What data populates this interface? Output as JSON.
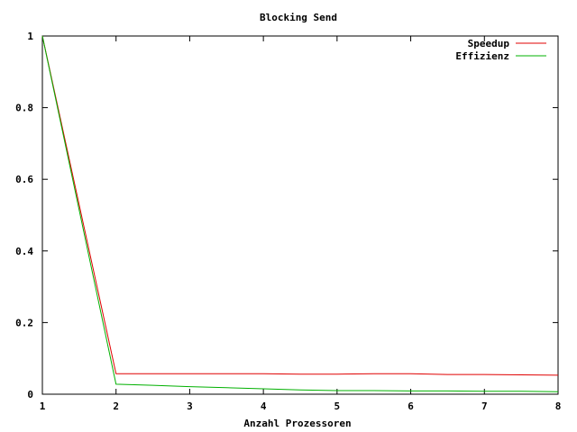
{
  "chart_data": {
    "type": "line",
    "title": "Blocking Send",
    "xlabel": "Anzahl Prozessoren",
    "ylabel": "",
    "xlim": [
      1,
      8
    ],
    "ylim": [
      0,
      1
    ],
    "x_ticks": [
      1,
      2,
      3,
      4,
      5,
      6,
      7,
      8
    ],
    "x_tick_labels": [
      "1",
      "2",
      "3",
      "4",
      "5",
      "6",
      "7",
      "8"
    ],
    "y_ticks": [
      0,
      0.2,
      0.4,
      0.6,
      0.8,
      1
    ],
    "y_tick_labels": [
      "0",
      "0.2",
      "0.4",
      "0.6",
      "0.8",
      "1"
    ],
    "grid": false,
    "legend_position": "top-right",
    "series": [
      {
        "name": "Speedup",
        "color": "#e00000",
        "x": [
          1,
          2,
          2.5,
          3,
          3.5,
          4,
          4.5,
          5,
          5.5,
          6,
          6.5,
          7,
          7.5,
          8
        ],
        "y": [
          1.0,
          0.057,
          0.057,
          0.057,
          0.057,
          0.057,
          0.056,
          0.056,
          0.057,
          0.057,
          0.055,
          0.055,
          0.054,
          0.053
        ]
      },
      {
        "name": "Effizienz",
        "color": "#00b000",
        "x": [
          1,
          2,
          2.5,
          3,
          3.5,
          4,
          4.5,
          5,
          5.5,
          6,
          6.5,
          7,
          7.5,
          8
        ],
        "y": [
          1.0,
          0.028,
          0.025,
          0.021,
          0.018,
          0.015,
          0.012,
          0.01,
          0.01,
          0.009,
          0.009,
          0.008,
          0.008,
          0.007
        ]
      }
    ]
  }
}
